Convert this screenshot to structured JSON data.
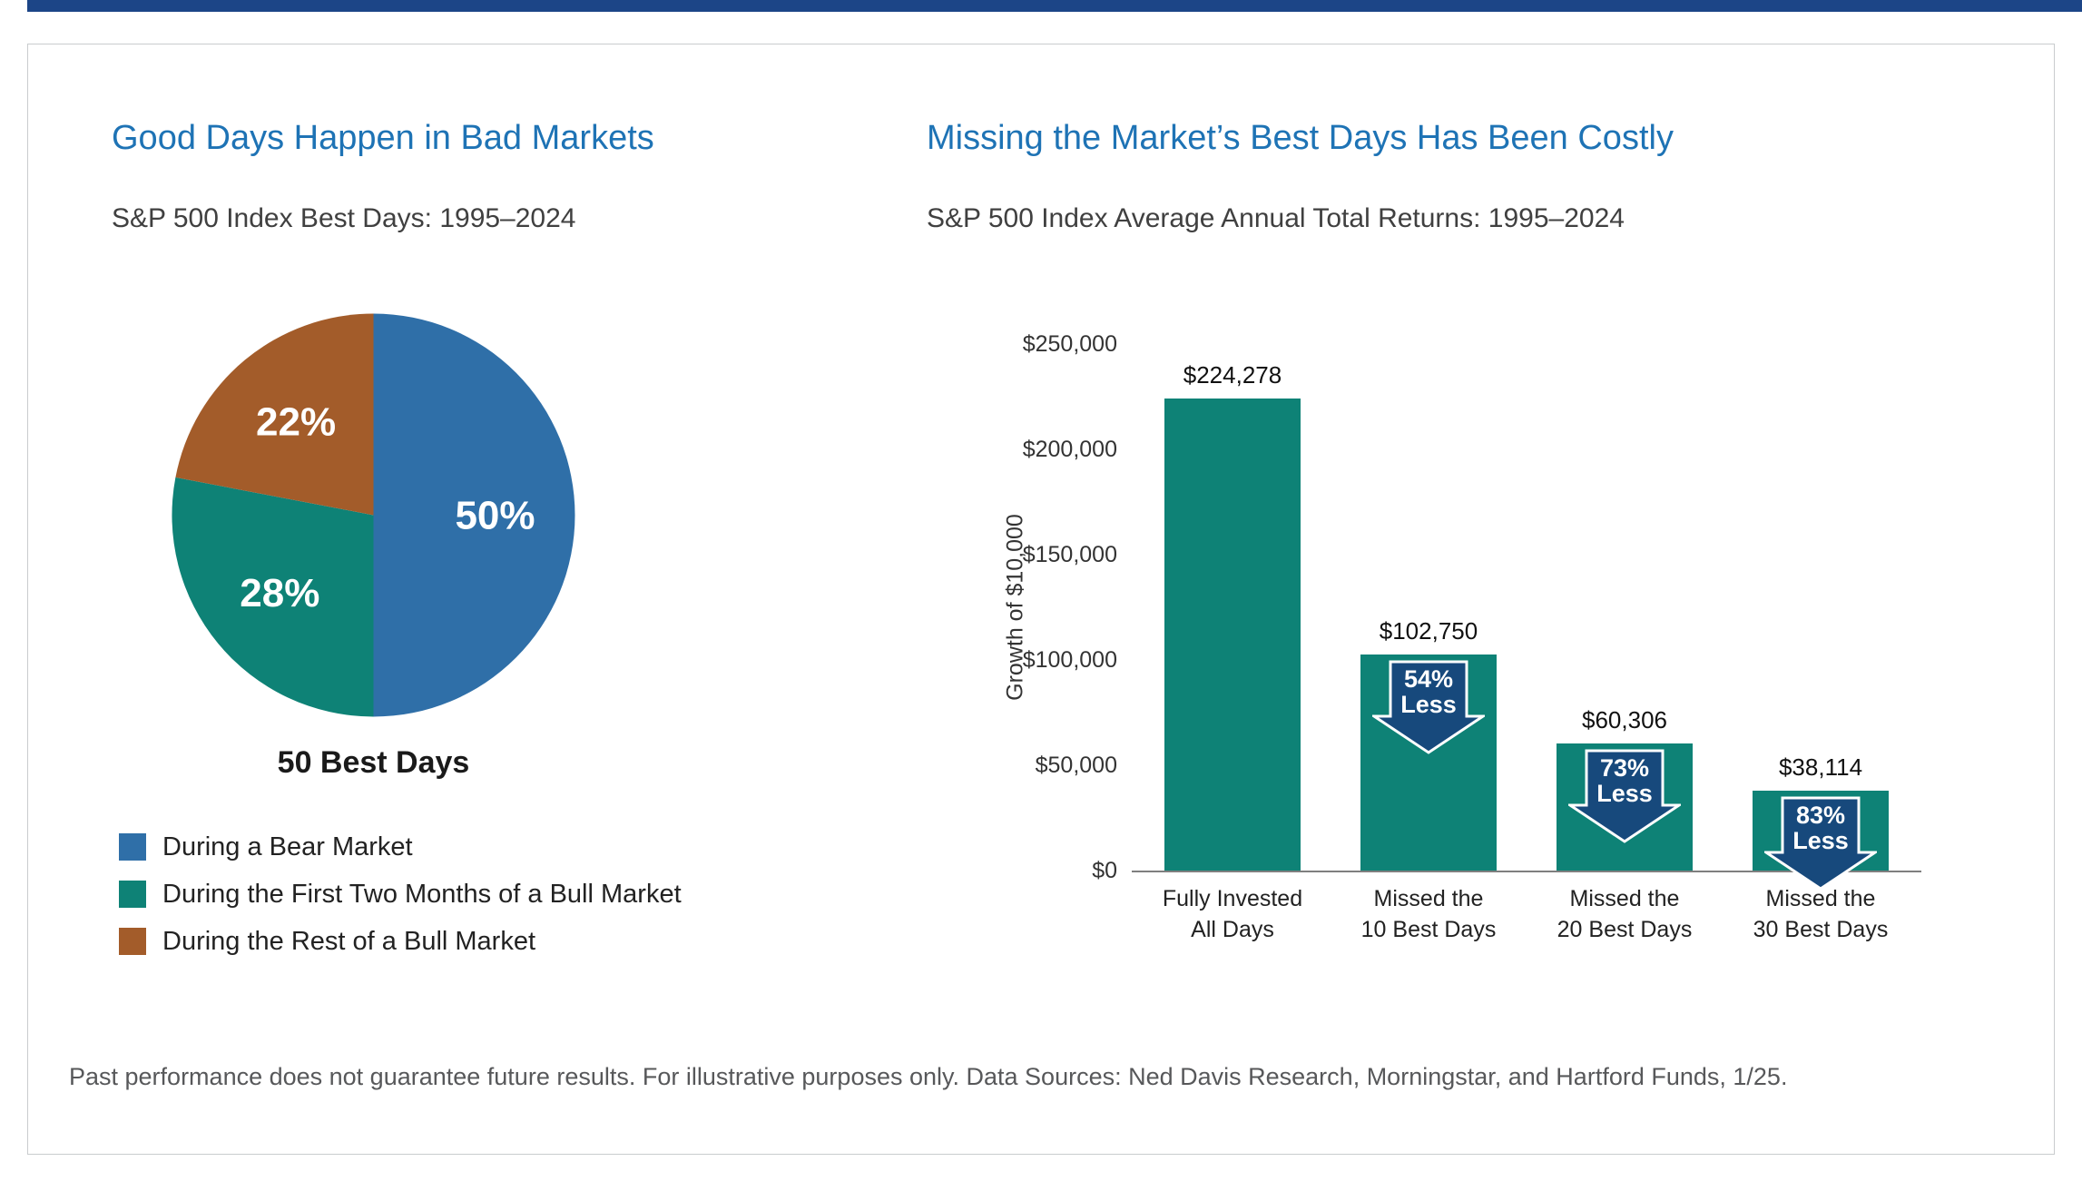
{
  "page": {
    "top_bar_color": "#1c4587",
    "footnote": "Past performance does not guarantee future results. For illustrative purposes only. Data Sources: Ned Davis Research, Morningstar, and Hartford Funds, 1/25."
  },
  "left_panel": {
    "title": "Good Days Happen in Bad Markets",
    "subtitle": "S&P 500 Index Best Days: 1995–2024"
  },
  "right_panel": {
    "title": "Missing the Market’s Best Days Has Been Costly",
    "subtitle": "S&P 500 Index Average Annual Total Returns: 1995–2024"
  },
  "chart_data": [
    {
      "type": "pie",
      "title": "S&P 500 Index Best Days: 1995–2024",
      "caption": "50 Best Days",
      "start_angle_deg": 0,
      "direction": "clockwise",
      "value_format": "percent",
      "slices": [
        {
          "label": "During a Bear Market",
          "value": 50,
          "color": "#2f6fa8"
        },
        {
          "label": "During the First Two Months of a Bull Market",
          "value": 28,
          "color": "#0e8276"
        },
        {
          "label": "During the Rest of a Bull Market",
          "value": 22,
          "color": "#a35c2a"
        }
      ]
    },
    {
      "type": "bar",
      "title": "S&P 500 Index Average Annual Total Returns: 1995–2024",
      "ylabel": "Growth of $10,000",
      "ylim": [
        0,
        250000
      ],
      "yticks": [
        "$0",
        "$50,000",
        "$100,000",
        "$150,000",
        "$200,000",
        "$250,000"
      ],
      "categories": [
        "Fully Invested\nAll Days",
        "Missed the\n10 Best Days",
        "Missed the\n20 Best Days",
        "Missed the\n30 Best Days"
      ],
      "values": [
        224278,
        102750,
        60306,
        38114
      ],
      "value_labels": [
        "$224,278",
        "$102,750",
        "$60,306",
        "$38,114"
      ],
      "badges": [
        null,
        "54%\nLess",
        "73%\nLess",
        "83%\nLess"
      ],
      "bar_color": "#0e8276",
      "badge_color": "#17497c",
      "grid": false,
      "legend_position": "none"
    }
  ]
}
